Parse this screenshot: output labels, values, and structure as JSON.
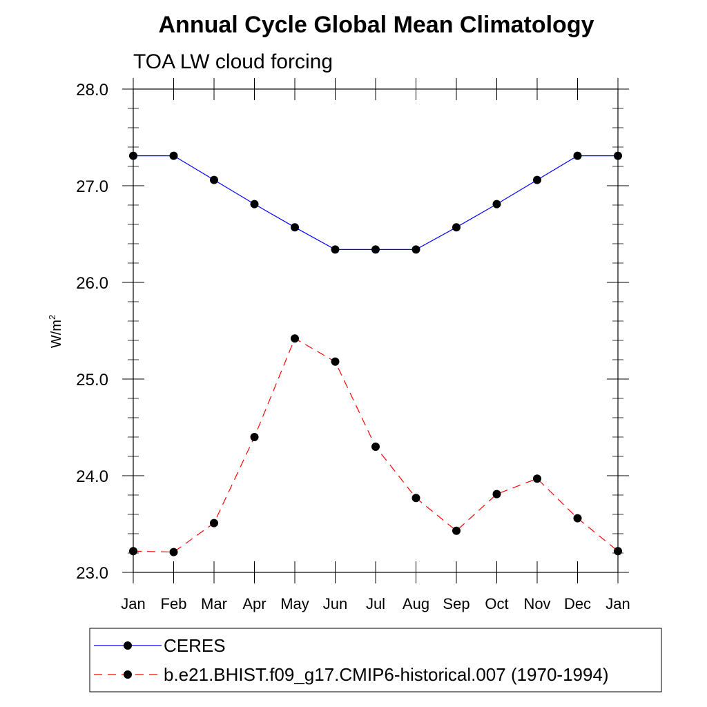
{
  "chart_data": {
    "type": "line",
    "title": "Annual Cycle Global Mean Climatology",
    "subtitle": "TOA LW cloud forcing",
    "xlabel": "",
    "ylabel": "W/m",
    "ylabel_superscript": "2",
    "ylim": [
      23.0,
      28.0
    ],
    "yticks": [
      "23.0",
      "24.0",
      "25.0",
      "26.0",
      "27.0",
      "28.0"
    ],
    "categories": [
      "Jan",
      "Feb",
      "Mar",
      "Apr",
      "May",
      "Jun",
      "Jul",
      "Aug",
      "Sep",
      "Oct",
      "Nov",
      "Dec",
      "Jan"
    ],
    "series": [
      {
        "name": "CERES",
        "color": "#0000ff",
        "dash": "solid",
        "values": [
          27.31,
          27.31,
          27.06,
          26.81,
          26.57,
          26.34,
          26.34,
          26.34,
          26.57,
          26.81,
          27.06,
          27.31,
          27.31
        ]
      },
      {
        "name": "b.e21.BHIST.f09_g17.CMIP6-historical.007 (1970-1994)",
        "color": "#ff0000",
        "dash": "dashed",
        "values": [
          23.22,
          23.21,
          23.51,
          24.4,
          25.42,
          25.18,
          24.3,
          23.77,
          23.43,
          23.81,
          23.97,
          23.56,
          23.22
        ]
      }
    ]
  }
}
